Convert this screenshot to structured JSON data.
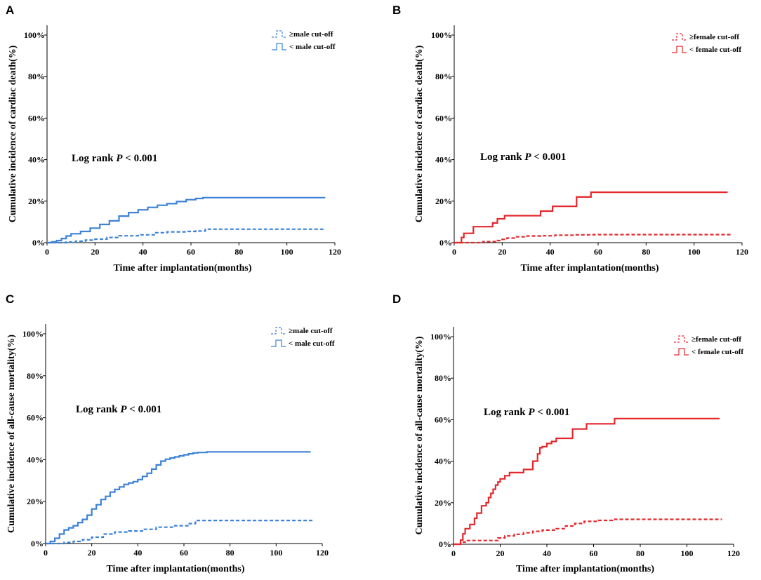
{
  "colors": {
    "blue": "#3d82d6",
    "red": "#e4282d",
    "axis": "#000000"
  },
  "chart_data": [
    {
      "panel": "A",
      "type": "line",
      "step": true,
      "title": "",
      "xlabel": "Time after implantation(months)",
      "ylabel": "Cumulative incidence of cardiac death(%)",
      "xlim": [
        0,
        120
      ],
      "ylim": [
        0,
        100
      ],
      "xticks": [
        0,
        20,
        40,
        60,
        80,
        100,
        120
      ],
      "xtick_labels": [
        "0",
        "20",
        "40",
        "60",
        "80",
        "100",
        "120"
      ],
      "yticks": [
        0,
        20,
        40,
        60,
        80,
        100
      ],
      "ytick_labels": [
        "0%",
        "20%",
        "40%",
        "60%",
        "80%",
        "100%"
      ],
      "annotation": {
        "prefix": "Log rank ",
        "italic": "P",
        "suffix": " < 0.001"
      },
      "legend_position": "top-right",
      "color_key": "blue",
      "series": [
        {
          "name": "≥male cut-off",
          "style": "dashed",
          "x": [
            0,
            8,
            12,
            16,
            20,
            25,
            30,
            38,
            45,
            50,
            58,
            62,
            66,
            116
          ],
          "y": [
            0,
            0.3,
            0.7,
            1.2,
            1.7,
            2.5,
            3.3,
            3.8,
            4.8,
            5.2,
            5.4,
            5.6,
            6.5,
            6.5
          ]
        },
        {
          "name": "< male cut-off",
          "style": "solid",
          "x": [
            0,
            2,
            4,
            6,
            8,
            10,
            14,
            18,
            22,
            26,
            30,
            34,
            38,
            42,
            46,
            50,
            54,
            58,
            62,
            65,
            116
          ],
          "y": [
            0,
            0.4,
            1.0,
            2.0,
            3.2,
            4.3,
            5.4,
            7.0,
            8.8,
            10.5,
            12.8,
            14.5,
            15.8,
            17.0,
            18.0,
            18.8,
            19.8,
            20.7,
            21.3,
            21.7,
            21.7
          ]
        }
      ]
    },
    {
      "panel": "B",
      "type": "line",
      "step": true,
      "title": "",
      "xlabel": "Time after implantation(months)",
      "ylabel": "Cumulative incidence of cardiac death(%)",
      "xlim": [
        0,
        120
      ],
      "ylim": [
        0,
        100
      ],
      "xticks": [
        0,
        20,
        40,
        60,
        80,
        100,
        120
      ],
      "xtick_labels": [
        "0",
        "20",
        "40",
        "60",
        "80",
        "100",
        "120"
      ],
      "yticks": [
        0,
        20,
        40,
        60,
        80,
        100
      ],
      "ytick_labels": [
        "0%",
        "20%",
        "40%",
        "60%",
        "80%",
        "100%"
      ],
      "annotation": {
        "prefix": "Log rank ",
        "italic": "P",
        "suffix": " < 0.001"
      },
      "legend_position": "top-right",
      "color_key": "red",
      "series": [
        {
          "name": "≥female cut-off",
          "style": "dashed",
          "x": [
            0,
            12,
            18,
            20,
            22,
            26,
            30,
            36,
            42,
            50,
            58,
            116
          ],
          "y": [
            0,
            0.5,
            1.0,
            1.6,
            2.2,
            2.8,
            3.2,
            3.3,
            3.6,
            3.8,
            3.9,
            3.9
          ]
        },
        {
          "name": "< female cut-off",
          "style": "solid",
          "x": [
            0,
            3,
            4,
            8,
            16,
            18,
            21,
            36,
            41,
            51,
            57,
            114
          ],
          "y": [
            0,
            2.5,
            4.5,
            7.7,
            9.5,
            11.5,
            13.0,
            15.2,
            17.5,
            22.0,
            24.3,
            24.3
          ]
        }
      ]
    },
    {
      "panel": "C",
      "type": "line",
      "step": true,
      "title": "",
      "xlabel": "Time after implantation(months)",
      "ylabel": "Cumulative incidence of all-cause mortality(%)",
      "xlim": [
        0,
        120
      ],
      "ylim": [
        0,
        100
      ],
      "xticks": [
        0,
        20,
        40,
        60,
        80,
        100,
        120
      ],
      "xtick_labels": [
        "0",
        "20",
        "40",
        "60",
        "80",
        "100",
        "120"
      ],
      "yticks": [
        0,
        20,
        40,
        60,
        80,
        100
      ],
      "ytick_labels": [
        "0%",
        "20%",
        "40%",
        "60%",
        "80%",
        "100%"
      ],
      "annotation": {
        "prefix": "Log rank ",
        "italic": "P",
        "suffix": " < 0.001"
      },
      "legend_position": "top-right",
      "color_key": "blue",
      "series": [
        {
          "name": "≥male cut-off",
          "style": "dashed",
          "x": [
            0,
            8,
            12,
            16,
            20,
            25,
            30,
            36,
            42,
            48,
            56,
            62,
            65,
            116
          ],
          "y": [
            0,
            0.5,
            1.0,
            1.8,
            3.0,
            4.5,
            5.5,
            6.0,
            6.8,
            7.8,
            8.5,
            9.5,
            11.0,
            11.0
          ]
        },
        {
          "name": "< male cut-off",
          "style": "solid",
          "x": [
            0,
            2,
            4,
            6,
            8,
            10,
            12,
            14,
            16,
            18,
            20,
            22,
            24,
            26,
            28,
            30,
            32,
            34,
            36,
            38,
            40,
            42,
            44,
            46,
            48,
            50,
            52,
            54,
            56,
            58,
            60,
            62,
            64,
            66,
            70,
            115
          ],
          "y": [
            0,
            1.0,
            2.5,
            4.5,
            6.5,
            7.5,
            8.5,
            10.0,
            11.5,
            13.5,
            16.5,
            18.5,
            21.0,
            22.5,
            24.5,
            25.8,
            27.0,
            28.2,
            28.9,
            29.5,
            30.5,
            32.0,
            33.5,
            35.5,
            37.5,
            39.3,
            40.2,
            40.8,
            41.3,
            41.8,
            42.3,
            42.8,
            43.2,
            43.4,
            43.7,
            43.7
          ]
        }
      ]
    },
    {
      "panel": "D",
      "type": "line",
      "step": true,
      "title": "",
      "xlabel": "Time after implantation(months)",
      "ylabel": "Cumulative incidence of all-cause mortality(%)",
      "xlim": [
        0,
        120
      ],
      "ylim": [
        0,
        100
      ],
      "xticks": [
        0,
        20,
        40,
        60,
        80,
        100,
        120
      ],
      "xtick_labels": [
        "0",
        "20",
        "40",
        "60",
        "80",
        "100",
        "120"
      ],
      "yticks": [
        0,
        20,
        40,
        60,
        80,
        100
      ],
      "ytick_labels": [
        "0%",
        "20%",
        "40%",
        "60%",
        "80%",
        "100%"
      ],
      "annotation": {
        "prefix": "Log rank ",
        "italic": "P",
        "suffix": " < 0.001"
      },
      "legend_position": "top-right",
      "color_key": "red",
      "series": [
        {
          "name": "≥female cut-off",
          "style": "dashed",
          "x": [
            0,
            3,
            5,
            16,
            19,
            22,
            26,
            30,
            34,
            38,
            44,
            48,
            52,
            56,
            62,
            68,
            115
          ],
          "y": [
            0,
            1.0,
            1.8,
            1.8,
            3.0,
            4.0,
            4.8,
            5.5,
            6.2,
            6.8,
            7.5,
            8.8,
            10.0,
            11.0,
            11.5,
            12.0,
            12.0
          ]
        },
        {
          "name": "< female cut-off",
          "style": "solid",
          "x": [
            0,
            3,
            4,
            5,
            7,
            9,
            10,
            12,
            14,
            15,
            16,
            17,
            18,
            19,
            20,
            22,
            24,
            30,
            34,
            36,
            37,
            38,
            40,
            42,
            44,
            51,
            57,
            69,
            114
          ],
          "y": [
            0,
            2.0,
            5.0,
            7.5,
            9.5,
            12.5,
            15.0,
            18.5,
            20.0,
            22.5,
            24.5,
            26.5,
            28.5,
            30.0,
            31.5,
            33.0,
            34.5,
            36.0,
            40.0,
            43.5,
            46.5,
            47.0,
            48.5,
            49.5,
            51.0,
            55.5,
            58.0,
            60.5,
            60.5
          ]
        }
      ]
    }
  ]
}
